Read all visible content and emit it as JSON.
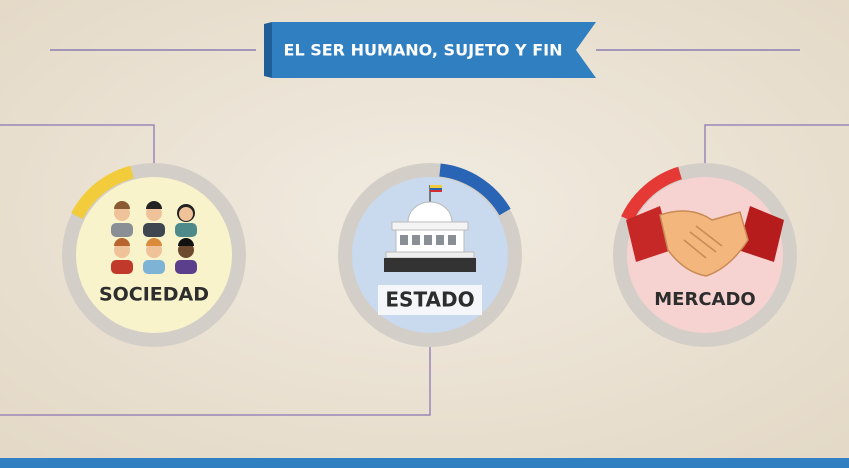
{
  "header": {
    "title": "EL SER HUMANO, SUJETO Y FIN"
  },
  "nodes": [
    {
      "label": "SOCIEDAD"
    },
    {
      "label": "ESTADO"
    },
    {
      "label": "MERCADO"
    }
  ]
}
